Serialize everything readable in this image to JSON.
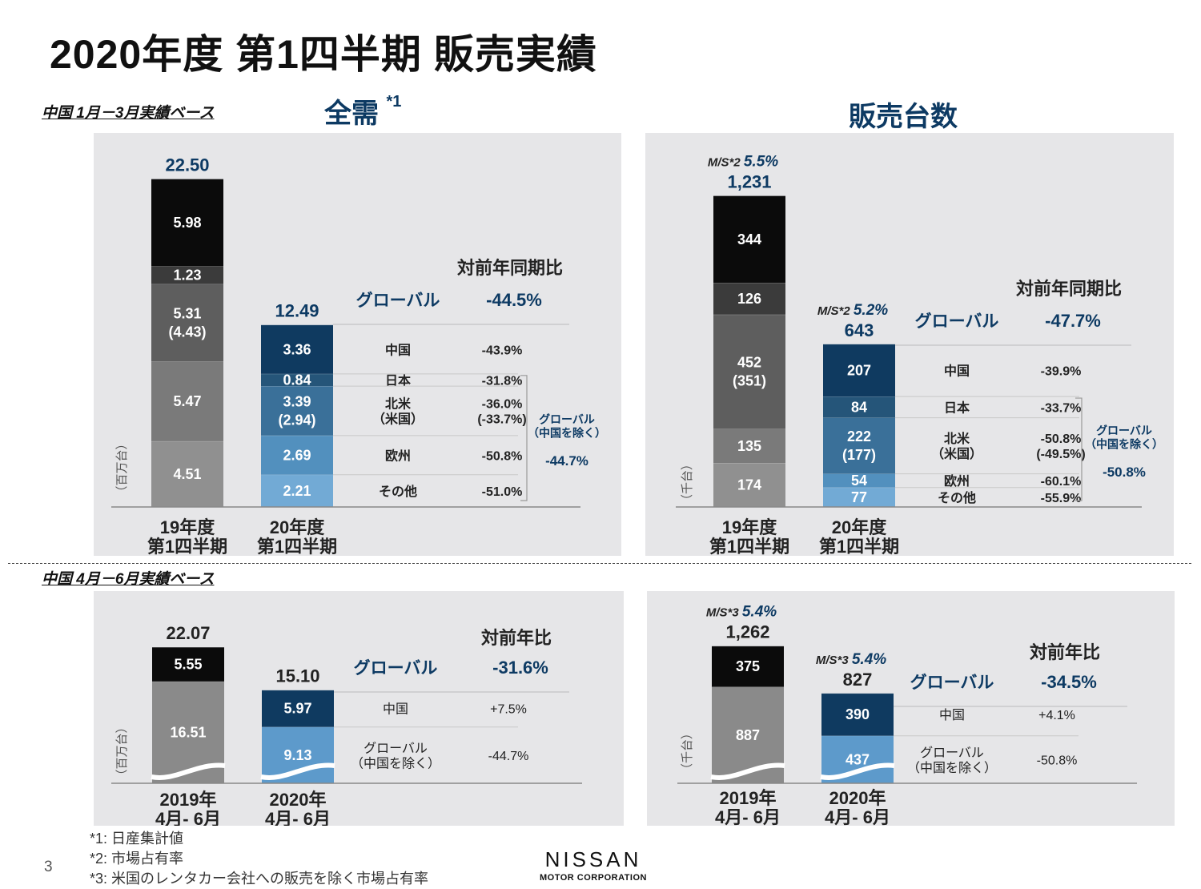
{
  "title": "2020年度 第1四半期 販売実績",
  "section_q1_basis": "中国 1月－3月実績ベース",
  "section_q2_basis": "中国 4月－6月実績ベース",
  "heading_left": "全需",
  "heading_left_mark": "*1",
  "heading_right": "販売台数",
  "footnotes": [
    "*1: 日産集計値",
    "*2: 市場占有率",
    "*3: 米国のレンタカー会社への販売を除く市場占有率"
  ],
  "page_number": "3",
  "logo": {
    "name": "NISSAN",
    "sub": "MOTOR CORPORATION"
  },
  "chart_data": [
    {
      "id": "tiv_q1",
      "type": "bar",
      "stacked": true,
      "unit_label": "（百万台）",
      "categories": [
        "19年度\n第1四半期",
        "20年度\n第1四半期"
      ],
      "totals": [
        {
          "value": 22.5,
          "label": "22.50"
        },
        {
          "value": 12.49,
          "label": "12.49"
        }
      ],
      "segments": [
        {
          "name": "中国",
          "values": [
            5.98,
            3.36
          ],
          "labels": [
            "5.98",
            "3.36"
          ],
          "colors": [
            "#0b0b0b",
            "#0f3a60"
          ]
        },
        {
          "name": "日本",
          "values": [
            1.23,
            0.84
          ],
          "labels": [
            "1.23",
            "0.84"
          ],
          "colors": [
            "#3b3b3b",
            "#255579"
          ]
        },
        {
          "name": "北米",
          "values": [
            5.31,
            3.39
          ],
          "labels": [
            "5.31\n(4.43)",
            "3.39\n(2.94)"
          ],
          "colors": [
            "#5e5e5e",
            "#3a7099"
          ]
        },
        {
          "name": "欧州",
          "values": [
            5.47,
            2.69
          ],
          "labels": [
            "5.47",
            "2.69"
          ],
          "colors": [
            "#7a7a7a",
            "#5290be"
          ]
        },
        {
          "name": "その他",
          "values": [
            4.51,
            2.21
          ],
          "labels": [
            "4.51",
            "2.21"
          ],
          "colors": [
            "#909090",
            "#72aad5"
          ]
        }
      ],
      "comparison": {
        "header": "対前年同期比",
        "global_label": "グローバル",
        "global_value": "-44.5%",
        "rows": [
          {
            "label": "中国",
            "value": "-43.9%"
          },
          {
            "label": "日本",
            "value": "-31.8%"
          },
          {
            "label": "北米\n（米国）",
            "value": "-36.0%\n(-33.7%)"
          },
          {
            "label": "欧州",
            "value": "-50.8%"
          },
          {
            "label": "その他",
            "value": "-51.0%"
          }
        ],
        "bracket_label": "グローバル\n（中国を除く）",
        "bracket_value": "-44.7%"
      }
    },
    {
      "id": "sales_q1",
      "type": "bar",
      "stacked": true,
      "unit_label": "（千台）",
      "categories": [
        "19年度\n第1四半期",
        "20年度\n第1四半期"
      ],
      "totals": [
        {
          "value": 1231,
          "label": "1,231",
          "ms_label": "M/S*2",
          "ms_value": "5.5%"
        },
        {
          "value": 643,
          "label": "643",
          "ms_label": "M/S*2",
          "ms_value": "5.2%"
        }
      ],
      "segments": [
        {
          "name": "中国",
          "values": [
            344,
            207
          ],
          "labels": [
            "344",
            "207"
          ],
          "colors": [
            "#0b0b0b",
            "#0f3a60"
          ]
        },
        {
          "name": "日本",
          "values": [
            126,
            84
          ],
          "labels": [
            "126",
            "84"
          ],
          "colors": [
            "#3b3b3b",
            "#255579"
          ]
        },
        {
          "name": "北米",
          "values": [
            452,
            222
          ],
          "labels": [
            "452\n(351)",
            "222\n(177)"
          ],
          "colors": [
            "#5e5e5e",
            "#3a7099"
          ]
        },
        {
          "name": "欧州",
          "values": [
            135,
            54
          ],
          "labels": [
            "135",
            "54"
          ],
          "colors": [
            "#7a7a7a",
            "#5290be"
          ]
        },
        {
          "name": "その他",
          "values": [
            174,
            77
          ],
          "labels": [
            "174",
            "77"
          ],
          "colors": [
            "#909090",
            "#72aad5"
          ]
        }
      ],
      "comparison": {
        "header": "対前年同期比",
        "global_label": "グローバル",
        "global_value": "-47.7%",
        "rows": [
          {
            "label": "中国",
            "value": "-39.9%"
          },
          {
            "label": "日本",
            "value": "-33.7%"
          },
          {
            "label": "北米\n（米国）",
            "value": "-50.8%\n(-49.5%)"
          },
          {
            "label": "欧州",
            "value": "-60.1%"
          },
          {
            "label": "その他",
            "value": "-55.9%"
          }
        ],
        "bracket_label": "グローバル\n（中国を除く）",
        "bracket_value": "-50.8%"
      }
    },
    {
      "id": "tiv_q2",
      "type": "bar",
      "stacked": true,
      "unit_label": "（百万台）",
      "categories": [
        "2019年\n4月- 6月",
        "2020年\n4月- 6月"
      ],
      "totals": [
        {
          "value": 22.07,
          "label": "22.07"
        },
        {
          "value": 15.1,
          "label": "15.10"
        }
      ],
      "segments": [
        {
          "name": "中国",
          "values": [
            5.55,
            5.97
          ],
          "labels": [
            "5.55",
            "5.97"
          ],
          "colors": [
            "#0b0b0b",
            "#0f3a60"
          ]
        },
        {
          "name": "グローバル（中国を除く）",
          "values": [
            16.51,
            9.13
          ],
          "labels": [
            "16.51",
            "9.13"
          ],
          "colors": [
            "#8a8a8a",
            "#5d9acb"
          ]
        }
      ],
      "comparison": {
        "header": "対前年比",
        "global_label": "グローバル",
        "global_value": "-31.6%",
        "rows": [
          {
            "label": "中国",
            "value": "+7.5%"
          },
          {
            "label": "グローバル\n（中国を除く）",
            "value": "-44.7%"
          }
        ]
      }
    },
    {
      "id": "sales_q2",
      "type": "bar",
      "stacked": true,
      "unit_label": "（千台）",
      "categories": [
        "2019年\n4月- 6月",
        "2020年\n4月- 6月"
      ],
      "totals": [
        {
          "value": 1262,
          "label": "1,262",
          "ms_label": "M/S*3",
          "ms_value": "5.4%"
        },
        {
          "value": 827,
          "label": "827",
          "ms_label": "M/S*3",
          "ms_value": "5.4%"
        }
      ],
      "segments": [
        {
          "name": "中国",
          "values": [
            375,
            390
          ],
          "labels": [
            "375",
            "390"
          ],
          "colors": [
            "#0b0b0b",
            "#0f3a60"
          ]
        },
        {
          "name": "グローバル（中国を除く）",
          "values": [
            887,
            437
          ],
          "labels": [
            "887",
            "437"
          ],
          "colors": [
            "#8a8a8a",
            "#5d9acb"
          ]
        }
      ],
      "comparison": {
        "header": "対前年比",
        "global_label": "グローバル",
        "global_value": "-34.5%",
        "rows": [
          {
            "label": "中国",
            "value": "+4.1%"
          },
          {
            "label": "グローバル\n（中国を除く）",
            "value": "-50.8%"
          }
        ]
      }
    }
  ]
}
